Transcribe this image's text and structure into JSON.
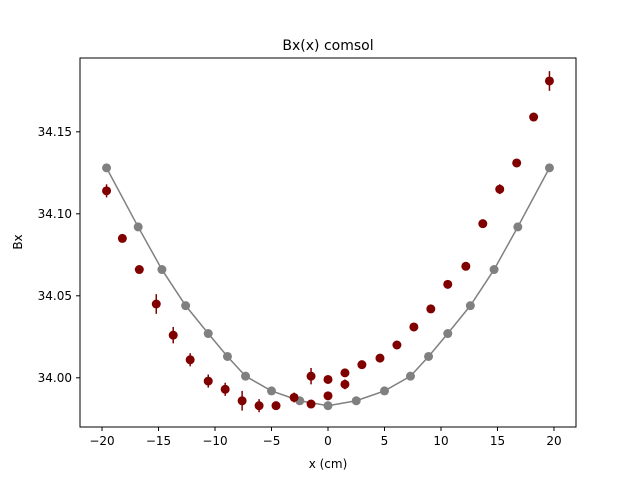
{
  "chart_data": {
    "type": "scatter",
    "title": "Bx(x) comsol",
    "xlabel": "x (cm)",
    "ylabel": "Bx",
    "xlim": [
      -21.95,
      21.95
    ],
    "ylim": [
      33.97,
      34.195
    ],
    "xticks": [
      -20,
      -15,
      -10,
      -5,
      0,
      5,
      10,
      15,
      20
    ],
    "xtick_labels": [
      "−20",
      "−15",
      "−10",
      "−5",
      "0",
      "5",
      "10",
      "15",
      "20"
    ],
    "yticks": [
      34.0,
      34.05,
      34.1,
      34.15
    ],
    "ytick_labels": [
      "34.00",
      "34.05",
      "34.10",
      "34.15"
    ],
    "grid": false,
    "series": [
      {
        "style": "line-markers",
        "color": "#808080",
        "x": [
          -19.6,
          -16.8,
          -14.7,
          -12.6,
          -10.6,
          -8.9,
          -7.3,
          -5.0,
          -2.5,
          0.0,
          2.5,
          5.0,
          7.3,
          8.9,
          10.6,
          12.6,
          14.7,
          16.8,
          19.6
        ],
        "y": [
          34.128,
          34.092,
          34.066,
          34.044,
          34.027,
          34.013,
          34.001,
          33.992,
          33.986,
          33.983,
          33.986,
          33.992,
          34.001,
          34.013,
          34.027,
          34.044,
          34.066,
          34.092,
          34.128
        ]
      },
      {
        "style": "errorbar-markers",
        "color": "#800000",
        "x": [
          -19.6,
          -18.2,
          -16.7,
          -15.2,
          -13.7,
          -12.2,
          -10.6,
          -9.1,
          -7.6,
          -6.1,
          -4.6,
          -3.0,
          -1.5,
          -1.5,
          0.0,
          0.0,
          1.5,
          1.5,
          3.0,
          4.6,
          6.1,
          7.6,
          9.1,
          10.6,
          12.2,
          13.7,
          15.2,
          16.7,
          18.2,
          19.6
        ],
        "y": [
          34.114,
          34.085,
          34.066,
          34.045,
          34.026,
          34.011,
          33.998,
          33.993,
          33.986,
          33.983,
          33.983,
          33.988,
          34.001,
          33.984,
          33.999,
          33.989,
          34.003,
          33.996,
          34.008,
          34.012,
          34.02,
          34.031,
          34.042,
          34.057,
          34.068,
          34.094,
          34.115,
          34.131,
          34.159,
          34.181
        ],
        "yerr": [
          0.004,
          0.002,
          0.002,
          0.006,
          0.005,
          0.004,
          0.004,
          0.004,
          0.006,
          0.004,
          0.002,
          0.003,
          0.005,
          0.002,
          0.002,
          0.002,
          0.002,
          0.003,
          0.002,
          0.002,
          0.002,
          0.002,
          0.002,
          0.002,
          0.002,
          0.002,
          0.003,
          0.002,
          0.002,
          0.006
        ]
      }
    ]
  }
}
